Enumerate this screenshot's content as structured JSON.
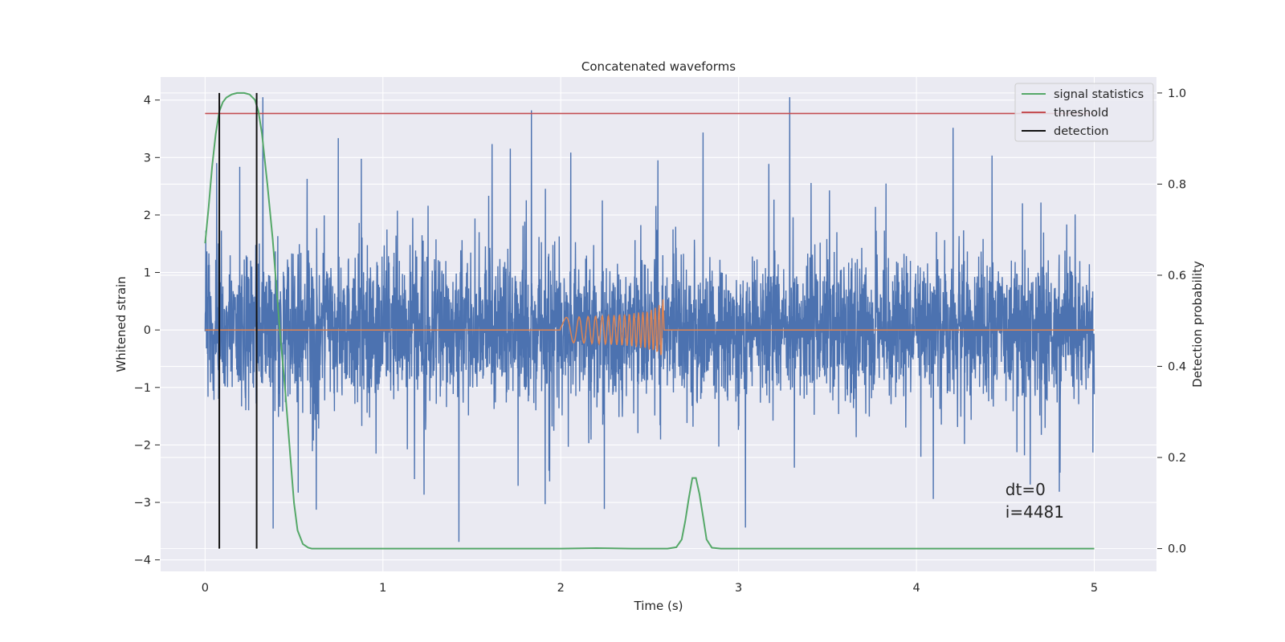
{
  "chart_data": {
    "type": "line",
    "title": "Concatenated waveforms",
    "xlabel": "Time (s)",
    "ylabel": "Whitened strain",
    "y2label": "Detection probability",
    "xlim": [
      -0.25,
      5.35
    ],
    "ylim": [
      -4.2,
      4.4
    ],
    "y2lim": [
      -0.05,
      1.035
    ],
    "x_ticks": [
      0,
      1,
      2,
      3,
      4,
      5
    ],
    "x_tick_labels": [
      "0",
      "1",
      "2",
      "3",
      "4",
      "5"
    ],
    "y_ticks": [
      -4,
      -3,
      -2,
      -1,
      0,
      1,
      2,
      3,
      4
    ],
    "y_tick_labels": [
      "−4",
      "−3",
      "−2",
      "−1",
      "0",
      "1",
      "2",
      "3",
      "4"
    ],
    "y2_ticks": [
      0.0,
      0.2,
      0.4,
      0.6,
      0.8,
      1.0
    ],
    "y2_tick_labels": [
      "0.0",
      "0.2",
      "0.4",
      "0.6",
      "0.8",
      "1.0"
    ],
    "grid": true,
    "legend_position": "top-right",
    "legend": [
      "signal statistics",
      "threshold",
      "detection"
    ],
    "annotation": {
      "line1": "dt=0",
      "line2": "i=4481",
      "x": 4.5,
      "y2": 0.1
    },
    "series": {
      "noise": {
        "axis": "left",
        "color": "#4c72b0",
        "x_range": [
          0,
          5
        ],
        "core_sigma": 0.6,
        "spike_max": 4.05,
        "spike_min": -3.85
      },
      "injected_waveform": {
        "axis": "left",
        "color": "#dd8452",
        "x_range": [
          0,
          5
        ],
        "chirp_start": 2.0,
        "chirp_end": 2.58,
        "peak_amplitude": 0.6
      },
      "signal_statistics": {
        "name": "signal statistics",
        "axis": "right",
        "color": "#55a868",
        "x": [
          0.0,
          0.02,
          0.04,
          0.06,
          0.08,
          0.1,
          0.12,
          0.15,
          0.18,
          0.2,
          0.22,
          0.25,
          0.28,
          0.3,
          0.32,
          0.35,
          0.38,
          0.4,
          0.42,
          0.45,
          0.48,
          0.5,
          0.52,
          0.55,
          0.58,
          0.6,
          1.0,
          1.5,
          2.0,
          2.2,
          2.4,
          2.6,
          2.65,
          2.68,
          2.7,
          2.72,
          2.74,
          2.76,
          2.78,
          2.8,
          2.82,
          2.85,
          2.9,
          3.5,
          4.0,
          4.5,
          5.0
        ],
        "y": [
          0.67,
          0.75,
          0.84,
          0.91,
          0.96,
          0.98,
          0.99,
          0.997,
          1.0,
          1.0,
          1.0,
          0.997,
          0.985,
          0.96,
          0.91,
          0.8,
          0.68,
          0.58,
          0.48,
          0.35,
          0.2,
          0.1,
          0.04,
          0.01,
          0.002,
          0.0,
          0.0,
          0.0,
          0.0,
          0.001,
          0.0,
          0.0,
          0.003,
          0.02,
          0.06,
          0.11,
          0.155,
          0.155,
          0.12,
          0.07,
          0.02,
          0.002,
          0.0,
          0.0,
          0.0,
          0.0,
          0.0
        ]
      },
      "threshold": {
        "name": "threshold",
        "axis": "right",
        "color": "#c44e52",
        "value": 0.955,
        "x_range": [
          0,
          5
        ]
      },
      "detections": {
        "name": "detection",
        "axis": "right",
        "color": "#111111",
        "x": [
          0.08,
          0.29
        ],
        "y_range": [
          0.0,
          1.0
        ]
      }
    }
  }
}
